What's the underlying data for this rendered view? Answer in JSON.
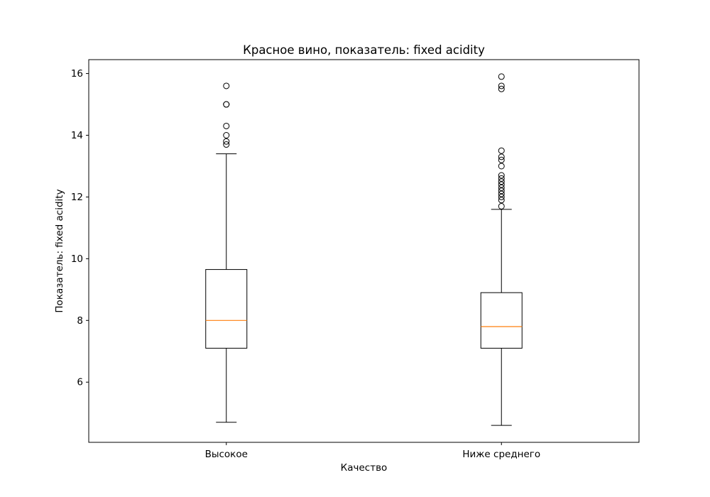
{
  "chart_data": {
    "type": "boxplot",
    "title": "Красное вино, показатель: fixed acidity",
    "xlabel": "Качество",
    "ylabel": "Показатель: fixed acidity",
    "ylim": [
      4.05,
      16.45
    ],
    "yticks": [
      6,
      8,
      10,
      12,
      14,
      16
    ],
    "grid": false,
    "categories": [
      "Высокое",
      "Ниже среднего"
    ],
    "series": [
      {
        "category": "Высокое",
        "whisker_low": 4.7,
        "q1": 7.1,
        "median": 8.0,
        "q3": 9.65,
        "whisker_high": 13.4,
        "outliers": [
          13.7,
          13.8,
          14.0,
          14.3,
          15.0,
          15.0,
          15.6
        ]
      },
      {
        "category": "Ниже среднего",
        "whisker_low": 4.6,
        "q1": 7.1,
        "median": 7.8,
        "q3": 8.9,
        "whisker_high": 11.6,
        "outliers": [
          11.7,
          11.9,
          12.0,
          12.1,
          12.2,
          12.3,
          12.4,
          12.5,
          12.6,
          12.7,
          13.0,
          13.2,
          13.3,
          13.5,
          15.5,
          15.6,
          15.9
        ]
      }
    ],
    "colors": {
      "box": "#000000",
      "median": "#ff7f0e",
      "outlier_edge": "#000000"
    }
  }
}
